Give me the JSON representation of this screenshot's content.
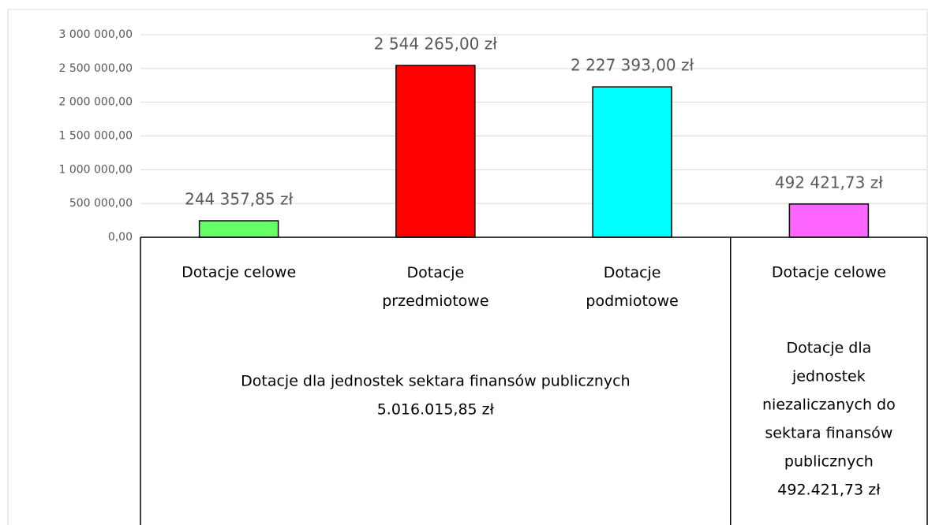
{
  "chart_data": {
    "type": "bar",
    "categories": [
      "Dotacje celowe",
      "Dotacje przedmiotowe",
      "Dotacje podmiotowe",
      "Dotacje celowe"
    ],
    "values": [
      244357.85,
      2544265,
      2227393,
      492421.73
    ],
    "value_labels": [
      "244 357,85 zł",
      "2 544 265,00 zł",
      "2 227 393,00 zł",
      "492 421,73 zł"
    ],
    "colors": [
      "#66ff66",
      "#ff0000",
      "#00ffff",
      "#ff66ff"
    ],
    "groups": [
      {
        "span": 3,
        "lines": [
          "Dotacje dla jednostek sektara finansów publicznych",
          "5.016.015,85 zł"
        ]
      },
      {
        "span": 1,
        "lines": [
          "Dotacje dla",
          "jednostek",
          "niezaliczanych do",
          "sektara finansów",
          "publicznych",
          "492.421,73 zł"
        ]
      }
    ],
    "ylim": [
      0,
      3000000
    ],
    "yticks": [
      {
        "value": 0,
        "label": "0,00"
      },
      {
        "value": 500000,
        "label": "500 000,00"
      },
      {
        "value": 1000000,
        "label": "1 000 000,00"
      },
      {
        "value": 1500000,
        "label": "1 500 000,00"
      },
      {
        "value": 2000000,
        "label": "2 000 000,00"
      },
      {
        "value": 2500000,
        "label": "2 500 000,00"
      },
      {
        "value": 3000000,
        "label": "3 000 000,00"
      }
    ],
    "grid": true
  }
}
